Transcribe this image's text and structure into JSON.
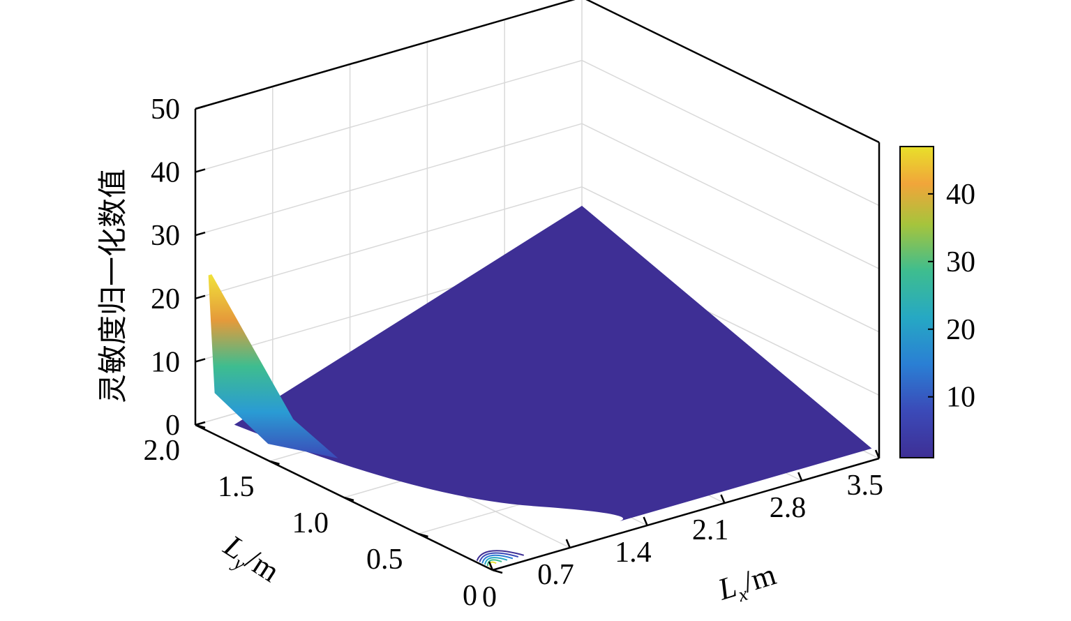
{
  "chart_data": {
    "type": "surface",
    "zlabel": "灵敏度归一化数值",
    "xlabel": {
      "main": "L",
      "sub": "x",
      "unit": "/m"
    },
    "ylabel": {
      "main": "L",
      "sub": "y",
      "unit": "/m"
    },
    "x_ticks": [
      "0",
      "0.7",
      "1.4",
      "2.1",
      "2.8",
      "3.5"
    ],
    "y_ticks": [
      "0",
      "0.5",
      "1.0",
      "1.5",
      "2.0"
    ],
    "z_ticks": [
      "0",
      "10",
      "20",
      "30",
      "40",
      "50"
    ],
    "xlim": [
      0,
      3.5
    ],
    "ylim": [
      0,
      2.0
    ],
    "zlim": [
      0,
      50
    ],
    "grid": true,
    "colorbar": {
      "position": "right",
      "ticks": [
        "10",
        "20",
        "30",
        "40"
      ],
      "range": [
        1,
        47
      ],
      "colormap": "parula"
    },
    "surface_summary": {
      "peak_value": 24,
      "peak_location": {
        "x": 0.05,
        "y": 1.95
      },
      "flat_value": 1,
      "corner_at_max_x_max_y": {
        "x": 3.5,
        "y": 2.0,
        "z": 17
      }
    },
    "colors": {
      "low": "#3e2f95",
      "high": "#e8e02a",
      "axis": "#000000",
      "grid": "#d9d9d9"
    }
  }
}
